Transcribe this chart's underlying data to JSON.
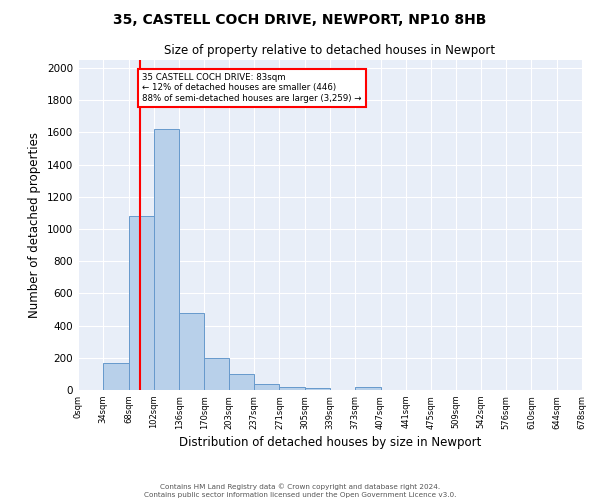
{
  "title": "35, CASTELL COCH DRIVE, NEWPORT, NP10 8HB",
  "subtitle": "Size of property relative to detached houses in Newport",
  "xlabel": "Distribution of detached houses by size in Newport",
  "ylabel": "Number of detached properties",
  "bin_edges": [
    0,
    34,
    68,
    102,
    136,
    170,
    203,
    237,
    271,
    305,
    339,
    373,
    407,
    441,
    475,
    509,
    542,
    576,
    610,
    644,
    678
  ],
  "bar_heights": [
    0,
    165,
    1080,
    1620,
    480,
    200,
    100,
    40,
    20,
    15,
    0,
    20,
    0,
    0,
    0,
    0,
    0,
    0,
    0,
    0
  ],
  "bar_color": "#b8d0ea",
  "bar_edgecolor": "#6699cc",
  "red_line_x": 83,
  "annotation_text": "35 CASTELL COCH DRIVE: 83sqm\n← 12% of detached houses are smaller (446)\n88% of semi-detached houses are larger (3,259) →",
  "annotation_box_color": "white",
  "annotation_box_edgecolor": "red",
  "ylim": [
    0,
    2050
  ],
  "yticks": [
    0,
    200,
    400,
    600,
    800,
    1000,
    1200,
    1400,
    1600,
    1800,
    2000
  ],
  "bg_color": "#e8eef8",
  "grid_color": "white",
  "footer_line1": "Contains HM Land Registry data © Crown copyright and database right 2024.",
  "footer_line2": "Contains public sector information licensed under the Open Government Licence v3.0."
}
